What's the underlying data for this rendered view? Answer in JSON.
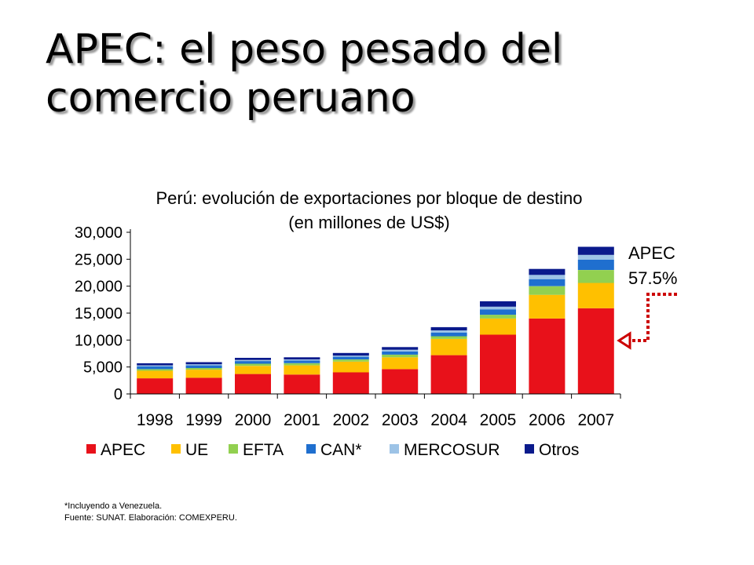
{
  "slide": {
    "title_line1": "APEC: el peso pesado del",
    "title_line2": "comercio peruano"
  },
  "chart_data": {
    "type": "bar",
    "stacked": true,
    "title": "Perú: evolución de exportaciones por bloque de destino",
    "subtitle": "(en millones de US$)",
    "categories": [
      "1998",
      "1999",
      "2000",
      "2001",
      "2002",
      "2003",
      "2004",
      "2005",
      "2006",
      "2007"
    ],
    "ylim": [
      0,
      30000
    ],
    "yticks": [
      0,
      5000,
      10000,
      15000,
      20000,
      25000,
      30000
    ],
    "ytick_labels": [
      "0",
      "5,000",
      "10,000",
      "15,000",
      "20,000",
      "25,000",
      "30,000"
    ],
    "grid": false,
    "legend_position": "bottom",
    "series": [
      {
        "name": "APEC",
        "color": "#e8111a",
        "values": [
          2900,
          3000,
          3700,
          3600,
          4000,
          4600,
          7200,
          11000,
          14000,
          15900
        ]
      },
      {
        "name": "UE",
        "color": "#ffc000",
        "values": [
          1400,
          1500,
          1500,
          1700,
          2000,
          2200,
          3000,
          3000,
          4400,
          4700
        ]
      },
      {
        "name": "EFTA",
        "color": "#92d050",
        "values": [
          300,
          300,
          400,
          400,
          400,
          500,
          500,
          700,
          1600,
          2400
        ]
      },
      {
        "name": "CAN*",
        "color": "#1f6fcf",
        "values": [
          500,
          500,
          500,
          500,
          500,
          600,
          700,
          1000,
          1300,
          1900
        ]
      },
      {
        "name": "MERCOSUR",
        "color": "#9dc3e6",
        "values": [
          200,
          200,
          200,
          200,
          200,
          300,
          400,
          500,
          800,
          900
        ]
      },
      {
        "name": "Otros",
        "color": "#0a1a8c",
        "values": [
          400,
          400,
          400,
          400,
          500,
          500,
          600,
          1000,
          1100,
          1500
        ]
      }
    ],
    "annotation": {
      "label": "APEC",
      "value": "57.5%",
      "arrow_color": "#cc0000"
    }
  },
  "footnotes": {
    "line1": "*Incluyendo a Venezuela.",
    "line2": "Fuente: SUNAT.  Elaboración: COMEXPERU."
  }
}
